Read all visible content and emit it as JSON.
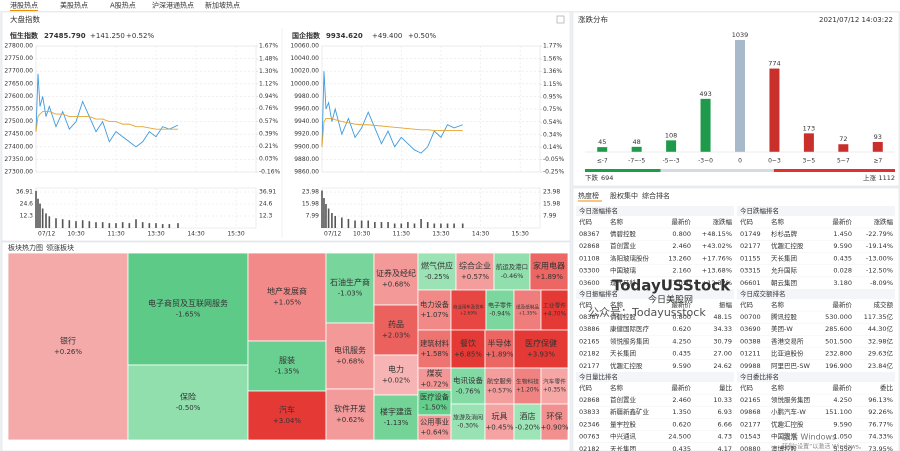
{
  "nav_tabs": [
    "港股热点",
    "美股热点",
    "A股热点",
    "沪深港通热点",
    "新加坡热点"
  ],
  "market_title": "大盘指数",
  "chart_data": [
    {
      "type": "line",
      "title": "恒生指数",
      "last": "27485.790",
      "change": "+141.250",
      "change_pct": "+0.52%",
      "x": [
        0,
        3,
        6,
        10,
        15,
        20,
        30,
        40,
        50,
        60,
        70,
        80,
        90,
        100,
        110,
        120,
        130,
        140,
        150,
        160,
        170,
        180,
        190,
        200,
        213
      ],
      "xlim": [
        0,
        330
      ],
      "xticks": [
        {
          "value": 0,
          "label": "07/12"
        },
        {
          "value": 60,
          "label": "10:30"
        },
        {
          "value": 120,
          "label": "11:30"
        },
        {
          "value": 180,
          "label": "13:30"
        },
        {
          "value": 240,
          "label": "14:30"
        },
        {
          "value": 300,
          "label": "15:30"
        }
      ],
      "series": [
        {
          "color": "#3d9be0",
          "values": [
            27460,
            27690,
            27560,
            27600,
            27520,
            27560,
            27480,
            27540,
            27470,
            27500,
            27580,
            27520,
            27460,
            27500,
            27420,
            27460,
            27440,
            27420,
            27400,
            27420,
            27460,
            27440,
            27480,
            27470,
            27486
          ]
        },
        {
          "color": "#e4a532",
          "values": [
            27460,
            27520,
            27530,
            27540,
            27540,
            27540,
            27530,
            27530,
            27520,
            27520,
            27520,
            27520,
            27510,
            27510,
            27500,
            27500,
            27490,
            27490,
            27480,
            27480,
            27475,
            27470,
            27470,
            27470,
            27470
          ]
        }
      ],
      "ylim": [
        27300,
        27800
      ],
      "yticks": [
        {
          "value": 27800,
          "label": "27800.00"
        },
        {
          "value": 27750,
          "label": "27750.00"
        },
        {
          "value": 27700,
          "label": "27700.00"
        },
        {
          "value": 27650,
          "label": "27650.00"
        },
        {
          "value": 27600,
          "label": "27600.00"
        },
        {
          "value": 27550,
          "label": "27550.00"
        },
        {
          "value": 27500,
          "label": "27500.00"
        },
        {
          "value": 27450,
          "label": "27450.00"
        },
        {
          "value": 27400,
          "label": "27400.00"
        },
        {
          "value": 27350,
          "label": "27350.00"
        },
        {
          "value": 27300,
          "label": "27300.00"
        }
      ],
      "y2lim": [
        -0.16,
        1.67
      ],
      "y2ticks": [
        {
          "value": 1.67,
          "label": "1.67%"
        },
        {
          "value": 1.48,
          "label": "1.48%"
        },
        {
          "value": 1.3,
          "label": "1.30%"
        },
        {
          "value": 1.12,
          "label": "1.12%"
        },
        {
          "value": 0.94,
          "label": "0.94%"
        },
        {
          "value": 0.76,
          "label": "0.76%"
        },
        {
          "value": 0.57,
          "label": "0.57%"
        },
        {
          "value": 0.39,
          "label": "0.39%"
        },
        {
          "value": 0.21,
          "label": "0.21%"
        },
        {
          "value": 0.03,
          "label": "0.03%"
        },
        {
          "value": -0.16,
          "label": "-0.16%"
        }
      ],
      "volume": {
        "color": "#555555",
        "values": [
          38,
          30,
          25,
          20,
          15,
          12,
          10,
          9,
          8,
          7,
          8,
          7,
          6,
          6,
          5,
          5,
          6,
          5,
          9,
          6,
          5,
          5,
          4,
          4,
          5
        ],
        "ylim": [
          0,
          41
        ],
        "yticks": [
          36.91,
          24.6,
          12.3
        ]
      },
      "grid": true
    },
    {
      "type": "line",
      "title": "国企指数",
      "last": "9934.620",
      "change": "+49.400",
      "change_pct": "+0.50%",
      "x": [
        0,
        3,
        6,
        10,
        15,
        20,
        30,
        40,
        50,
        60,
        70,
        80,
        90,
        100,
        110,
        120,
        130,
        140,
        150,
        160,
        170,
        180,
        190,
        200,
        213
      ],
      "xlim": [
        0,
        330
      ],
      "xticks": [
        {
          "value": 0,
          "label": "07/12"
        },
        {
          "value": 60,
          "label": "10:30"
        },
        {
          "value": 120,
          "label": "11:30"
        },
        {
          "value": 180,
          "label": "13:30"
        },
        {
          "value": 240,
          "label": "14:30"
        },
        {
          "value": 300,
          "label": "15:30"
        }
      ],
      "series": [
        {
          "color": "#3d9be0",
          "values": [
            9900,
            10020,
            9960,
            9970,
            9940,
            9960,
            9920,
            9945,
            9915,
            9930,
            9955,
            9930,
            9905,
            9925,
            9900,
            9915,
            9905,
            9895,
            9890,
            9900,
            9925,
            9915,
            9935,
            9930,
            9935
          ]
        },
        {
          "color": "#e4a532",
          "values": [
            9900,
            9940,
            9945,
            9945,
            9945,
            9943,
            9940,
            9938,
            9936,
            9935,
            9935,
            9934,
            9933,
            9932,
            9931,
            9930,
            9929,
            9928,
            9927,
            9927,
            9926,
            9926,
            9926,
            9926,
            9926
          ]
        }
      ],
      "ylim": [
        9860,
        10060
      ],
      "yticks": [
        {
          "value": 10060,
          "label": "10060.00"
        },
        {
          "value": 10040,
          "label": "10040.00"
        },
        {
          "value": 10020,
          "label": "10020.00"
        },
        {
          "value": 10000,
          "label": "10000.00"
        },
        {
          "value": 9980,
          "label": "9980.00"
        },
        {
          "value": 9960,
          "label": "9960.00"
        },
        {
          "value": 9940,
          "label": "9940.00"
        },
        {
          "value": 9920,
          "label": "9920.00"
        },
        {
          "value": 9900,
          "label": "9900.00"
        },
        {
          "value": 9880,
          "label": "9880.00"
        },
        {
          "value": 9860,
          "label": "9860.00"
        }
      ],
      "y2lim": [
        -0.25,
        1.77
      ],
      "y2ticks": [
        {
          "value": 1.77,
          "label": "1.77%"
        },
        {
          "value": 1.56,
          "label": "1.56%"
        },
        {
          "value": 1.36,
          "label": "1.36%"
        },
        {
          "value": 1.15,
          "label": "1.15%"
        },
        {
          "value": 0.95,
          "label": "0.95%"
        },
        {
          "value": 0.75,
          "label": "0.75%"
        },
        {
          "value": 0.54,
          "label": "0.54%"
        },
        {
          "value": 0.34,
          "label": "0.34%"
        },
        {
          "value": 0.14,
          "label": "0.14%"
        },
        {
          "value": -0.05,
          "label": "-0.05%"
        },
        {
          "value": -0.25,
          "label": "-0.25%"
        }
      ],
      "volume": {
        "color": "#555555",
        "values": [
          25,
          20,
          16,
          13,
          10,
          8,
          7,
          6,
          5,
          5,
          5,
          4,
          4,
          4,
          3,
          3,
          4,
          3,
          6,
          4,
          3,
          3,
          3,
          3,
          3
        ],
        "ylim": [
          0,
          26.7
        ],
        "yticks": [
          23.98,
          15.98,
          7.99
        ]
      },
      "grid": true
    },
    {
      "type": "bar",
      "title": "涨跌分布",
      "subtitle": "2021/07/12 14:03:22",
      "categories": [
        "≤-7",
        "-7~-5",
        "-5~-3",
        "-3~0",
        "0",
        "0~3",
        "3~5",
        "5~7",
        "≥7"
      ],
      "values": [
        45,
        48,
        108,
        493,
        1039,
        774,
        173,
        72,
        93
      ],
      "colors": [
        "#1f9a4b",
        "#1f9a4b",
        "#1f9a4b",
        "#1f9a4b",
        "#a9b9cc",
        "#c9302c",
        "#c9302c",
        "#c9302c",
        "#c9302c"
      ],
      "falling": {
        "label": "下跌",
        "count": 694
      },
      "rising": {
        "label": "上涨",
        "count": 1112
      }
    }
  ],
  "treemap": {
    "tabs": [
      "板块热力图",
      "领涨板块"
    ],
    "cells": [
      {
        "name": "银行",
        "value": 0.26,
        "label": "+0.26%"
      },
      {
        "name": "电子商贸及互联网服务",
        "value": -1.65,
        "label": "-1.65%"
      },
      {
        "name": "保险",
        "value": -0.5,
        "label": "-0.50%"
      },
      {
        "name": "地产发展商",
        "value": 1.05,
        "label": "+1.05%"
      },
      {
        "name": "服装",
        "value": -1.35,
        "label": "-1.35%"
      },
      {
        "name": "汽车",
        "value": 3.04,
        "label": "+3.04%"
      },
      {
        "name": "石油生产商",
        "value": -1.03,
        "label": "-1.03%"
      },
      {
        "name": "电讯服务",
        "value": 0.68,
        "label": "+0.68%"
      },
      {
        "name": "软件开发",
        "value": 0.62,
        "label": "+0.62%"
      },
      {
        "name": "证券及经纪",
        "value": 0.68,
        "label": "+0.68%"
      },
      {
        "name": "药品",
        "value": 2.03,
        "label": "+2.03%"
      },
      {
        "name": "电力",
        "value": 0.02,
        "label": "+0.02%"
      },
      {
        "name": "楼宇建造",
        "value": -1.13,
        "label": "-1.13%"
      },
      {
        "name": "燃气供应",
        "value": -0.25,
        "label": "-0.25%"
      },
      {
        "name": "综合企业",
        "value": 0.57,
        "label": "+0.57%"
      },
      {
        "name": "航运及港口",
        "value": -0.46,
        "label": "-0.46%"
      },
      {
        "name": "家用电器",
        "value": 1.89,
        "label": "+1.89%"
      },
      {
        "name": "电力设备",
        "value": 1.07,
        "label": "+1.07%"
      },
      {
        "name": "商业用车及货车",
        "value": 2.69,
        "label": "+2.69%"
      },
      {
        "name": "电子零件",
        "value": -0.94,
        "label": "-0.94%"
      },
      {
        "name": "纸及纸制品",
        "value": 1.35,
        "label": "+1.35%"
      },
      {
        "name": "工业零件",
        "value": 4.7,
        "label": "+4.70%"
      },
      {
        "name": "建筑材料",
        "value": 1.58,
        "label": "+1.58%"
      },
      {
        "name": "餐饮",
        "value": 6.85,
        "label": "+6.85%"
      },
      {
        "name": "半导体",
        "value": 1.89,
        "label": "+1.89%"
      },
      {
        "name": "医疗保健",
        "value": 3.93,
        "label": "+3.93%"
      },
      {
        "name": "煤炭",
        "value": 0.72,
        "label": "+0.72%"
      },
      {
        "name": "电讯设备",
        "value": -0.76,
        "label": "-0.76%"
      },
      {
        "name": "医疗设备",
        "value": -1.5,
        "label": "-1.50%"
      },
      {
        "name": "航空服务",
        "value": 0.57,
        "label": "+0.57%"
      },
      {
        "name": "公用事业",
        "value": 0.64,
        "label": "+0.64%"
      },
      {
        "name": "生物科技",
        "value": 1.2,
        "label": "+1.20%"
      },
      {
        "name": "汽车零件",
        "value": 0.35,
        "label": "+0.35%"
      },
      {
        "name": "旅游及消闲",
        "value": -0.3,
        "label": "-0.30%"
      },
      {
        "name": "玩具",
        "value": 0.45,
        "label": "+0.45%"
      },
      {
        "name": "酒店",
        "value": -0.2,
        "label": "-0.20%"
      },
      {
        "name": "环保",
        "value": 0.9,
        "label": "+0.90%"
      }
    ]
  },
  "rankings": {
    "tabs": [
      "热度榜",
      "股权集中",
      "综合排名"
    ],
    "tables": [
      {
        "title": "今日涨幅排名",
        "columns": [
          "代码",
          "名称",
          "最新价",
          "涨跌幅"
        ],
        "rows": [
          [
            "08367",
            "倩碧控股",
            "0.800",
            "+48.15%"
          ],
          [
            "02868",
            "首创置业",
            "2.460",
            "+43.02%"
          ],
          [
            "01108",
            "洛阳玻璃股份",
            "13.260",
            "+17.76%"
          ],
          [
            "03300",
            "中国玻璃",
            "2.160",
            "+13.68%"
          ],
          [
            "03600",
            "现代牙科",
            "7.020",
            "+12.32%"
          ]
        ]
      },
      {
        "title": "今日跌幅排名",
        "columns": [
          "代码",
          "名称",
          "最新价",
          "涨跌幅"
        ],
        "rows": [
          [
            "01749",
            "杉杉品牌",
            "1.450",
            "-22.79%"
          ],
          [
            "02177",
            "优趣汇控股",
            "9.590",
            "-19.14%"
          ],
          [
            "01155",
            "天长集团",
            "0.435",
            "-13.00%"
          ],
          [
            "03315",
            "允升国际",
            "0.028",
            "-12.50%"
          ],
          [
            "06601",
            "朝云集团",
            "3.180",
            "-8.09%"
          ]
        ]
      },
      {
        "title": "今日振幅排名",
        "columns": [
          "代码",
          "名称",
          "最新价",
          "振幅"
        ],
        "rows": [
          [
            "08367",
            "倩碧控股",
            "0.800",
            "48.15"
          ],
          [
            "03886",
            "康健国际医疗",
            "0.620",
            "34.33"
          ],
          [
            "02165",
            "领悦服务集团",
            "4.250",
            "30.79"
          ],
          [
            "02182",
            "天长集团",
            "0.435",
            "27.00"
          ],
          [
            "02177",
            "优趣汇控股",
            "9.590",
            "24.62"
          ]
        ]
      },
      {
        "title": "今日成交额排名",
        "columns": [
          "代码",
          "名称",
          "最新价",
          "成交额"
        ],
        "rows": [
          [
            "00700",
            "腾讯控股",
            "530.000",
            "117.35亿"
          ],
          [
            "03690",
            "美团-W",
            "285.600",
            "44.30亿"
          ],
          [
            "00388",
            "香港交易所",
            "501.500",
            "32.98亿"
          ],
          [
            "01211",
            "比亚迪股份",
            "232.800",
            "29.63亿"
          ],
          [
            "09988",
            "阿里巴巴-SW",
            "196.900",
            "23.84亿"
          ]
        ]
      },
      {
        "title": "今日量比排名",
        "columns": [
          "代码",
          "名称",
          "最新价",
          "量比"
        ],
        "rows": [
          [
            "02868",
            "首创置业",
            "2.460",
            "10.33"
          ],
          [
            "03833",
            "新疆新鑫矿业",
            "1.350",
            "6.93"
          ],
          [
            "02346",
            "量宇控股",
            "0.620",
            "6.66"
          ],
          [
            "00763",
            "中兴通讯",
            "24.500",
            "4.73"
          ],
          [
            "02182",
            "天长集团",
            "0.435",
            "4.17"
          ]
        ]
      },
      {
        "title": "今日委比排名",
        "columns": [
          "代码",
          "名称",
          "最新价",
          "委比"
        ],
        "rows": [
          [
            "02165",
            "领悦服务集团",
            "4.250",
            "96.13%"
          ],
          [
            "09868",
            "小鹏汽车-W",
            "151.100",
            "92.26%"
          ],
          [
            "02177",
            "优趣汇控股",
            "9.590",
            "76.77%"
          ],
          [
            "01543",
            "中国润东",
            "1.050",
            "74.33%"
          ],
          [
            "00880",
            "澳博控股",
            "5.550",
            "73.95%"
          ]
        ]
      }
    ]
  },
  "watermark": {
    "brand": "TodayUSStock",
    "site": "今日美股网",
    "wechat": "公众号：Todayusstock",
    "os_notice": "激活 Windows",
    "os_hint": "转到“设置”以激活 Windows。"
  }
}
